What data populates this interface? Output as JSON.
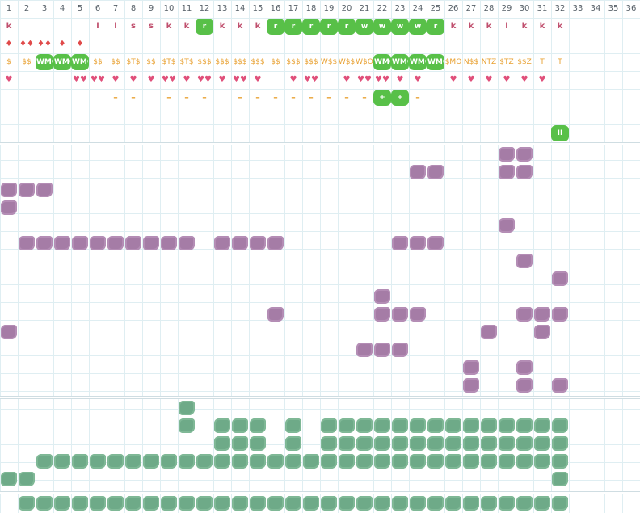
{
  "columns": [
    "1",
    "2",
    "3",
    "4",
    "5",
    "6",
    "7",
    "8",
    "9",
    "10",
    "11",
    "12",
    "13",
    "14",
    "15",
    "16",
    "17",
    "18",
    "19",
    "20",
    "21",
    "22",
    "23",
    "24",
    "25",
    "26",
    "27",
    "28",
    "29",
    "30",
    "31",
    "32",
    "33",
    "34",
    "35",
    "36"
  ],
  "top_rows": [
    {
      "row": 1,
      "cells": [
        {
          "c": 1,
          "t": "text",
          "v": "k"
        },
        {
          "c": 6,
          "t": "text",
          "v": "l"
        },
        {
          "c": 7,
          "t": "text",
          "v": "l"
        },
        {
          "c": 8,
          "t": "text",
          "v": "s"
        },
        {
          "c": 9,
          "t": "text",
          "v": "s"
        },
        {
          "c": 10,
          "t": "text",
          "v": "k"
        },
        {
          "c": 11,
          "t": "text",
          "v": "k"
        },
        {
          "c": 12,
          "t": "green",
          "v": "r"
        },
        {
          "c": 13,
          "t": "text",
          "v": "k"
        },
        {
          "c": 14,
          "t": "text",
          "v": "k"
        },
        {
          "c": 15,
          "t": "text",
          "v": "k"
        },
        {
          "c": 16,
          "t": "green",
          "v": "r"
        },
        {
          "c": 17,
          "t": "green",
          "v": "r"
        },
        {
          "c": 18,
          "t": "green",
          "v": "r"
        },
        {
          "c": 19,
          "t": "green",
          "v": "r"
        },
        {
          "c": 20,
          "t": "green",
          "v": "r"
        },
        {
          "c": 21,
          "t": "green",
          "v": "w"
        },
        {
          "c": 22,
          "t": "green",
          "v": "w"
        },
        {
          "c": 23,
          "t": "green",
          "v": "w"
        },
        {
          "c": 24,
          "t": "green",
          "v": "w"
        },
        {
          "c": 25,
          "t": "green",
          "v": "r"
        },
        {
          "c": 26,
          "t": "text",
          "v": "k"
        },
        {
          "c": 27,
          "t": "text",
          "v": "k"
        },
        {
          "c": 28,
          "t": "text",
          "v": "k"
        },
        {
          "c": 29,
          "t": "text",
          "v": "l"
        },
        {
          "c": 30,
          "t": "text",
          "v": "k"
        },
        {
          "c": 31,
          "t": "text",
          "v": "k"
        },
        {
          "c": 32,
          "t": "text",
          "v": "k"
        }
      ]
    },
    {
      "row": 2,
      "cells": [
        {
          "c": 1,
          "t": "drop",
          "v": "♦"
        },
        {
          "c": 2,
          "t": "drop",
          "v": "♦♦"
        },
        {
          "c": 3,
          "t": "drop",
          "v": "♦♦"
        },
        {
          "c": 4,
          "t": "drop",
          "v": "♦"
        },
        {
          "c": 5,
          "t": "drop",
          "v": "♦"
        }
      ]
    },
    {
      "row": 3,
      "cells": [
        {
          "c": 1,
          "t": "dollar",
          "v": "$"
        },
        {
          "c": 2,
          "t": "dollar",
          "v": "$$"
        },
        {
          "c": 3,
          "t": "green",
          "v": "WMO"
        },
        {
          "c": 4,
          "t": "green",
          "v": "WMO"
        },
        {
          "c": 5,
          "t": "green",
          "v": "WMO"
        },
        {
          "c": 6,
          "t": "dollar",
          "v": "$$"
        },
        {
          "c": 7,
          "t": "dollar",
          "v": "$$"
        },
        {
          "c": 8,
          "t": "dollar",
          "v": "$T$"
        },
        {
          "c": 9,
          "t": "dollar",
          "v": "$$"
        },
        {
          "c": 10,
          "t": "dollar",
          "v": "$T$"
        },
        {
          "c": 11,
          "t": "dollar",
          "v": "$T$"
        },
        {
          "c": 12,
          "t": "dollar",
          "v": "$$$"
        },
        {
          "c": 13,
          "t": "dollar",
          "v": "$$$"
        },
        {
          "c": 14,
          "t": "dollar",
          "v": "$$$"
        },
        {
          "c": 15,
          "t": "dollar",
          "v": "$$$"
        },
        {
          "c": 16,
          "t": "dollar",
          "v": "$$"
        },
        {
          "c": 17,
          "t": "dollar",
          "v": "$$$"
        },
        {
          "c": 18,
          "t": "dollar",
          "v": "$$$"
        },
        {
          "c": 19,
          "t": "dollar",
          "v": "W$$"
        },
        {
          "c": 20,
          "t": "dollar",
          "v": "W$$"
        },
        {
          "c": 21,
          "t": "dollar",
          "v": "W$O"
        },
        {
          "c": 22,
          "t": "green",
          "v": "WMO"
        },
        {
          "c": 23,
          "t": "green",
          "v": "WMO"
        },
        {
          "c": 24,
          "t": "green",
          "v": "WMO"
        },
        {
          "c": 25,
          "t": "green",
          "v": "WMO"
        },
        {
          "c": 26,
          "t": "dollar",
          "v": "$MO"
        },
        {
          "c": 27,
          "t": "dollar",
          "v": "N$$"
        },
        {
          "c": 28,
          "t": "dollar",
          "v": "NTZ"
        },
        {
          "c": 29,
          "t": "dollar",
          "v": "$TZ"
        },
        {
          "c": 30,
          "t": "dollar",
          "v": "$$Z"
        },
        {
          "c": 31,
          "t": "dollar",
          "v": "T"
        },
        {
          "c": 32,
          "t": "dollar",
          "v": "T"
        }
      ]
    },
    {
      "row": 4,
      "cells": [
        {
          "c": 1,
          "t": "heart",
          "v": "♥"
        },
        {
          "c": 5,
          "t": "heart",
          "v": "♥♥"
        },
        {
          "c": 6,
          "t": "heart",
          "v": "♥♥"
        },
        {
          "c": 7,
          "t": "heart",
          "v": "♥"
        },
        {
          "c": 8,
          "t": "heart",
          "v": "♥"
        },
        {
          "c": 9,
          "t": "heart",
          "v": "♥"
        },
        {
          "c": 10,
          "t": "heart",
          "v": "♥♥"
        },
        {
          "c": 11,
          "t": "heart",
          "v": "♥"
        },
        {
          "c": 12,
          "t": "heart",
          "v": "♥♥"
        },
        {
          "c": 13,
          "t": "heart",
          "v": "♥"
        },
        {
          "c": 14,
          "t": "heart",
          "v": "♥♥"
        },
        {
          "c": 15,
          "t": "heart",
          "v": "♥"
        },
        {
          "c": 17,
          "t": "heart",
          "v": "♥"
        },
        {
          "c": 18,
          "t": "heart",
          "v": "♥♥"
        },
        {
          "c": 20,
          "t": "heart",
          "v": "♥"
        },
        {
          "c": 21,
          "t": "heart",
          "v": "♥♥"
        },
        {
          "c": 22,
          "t": "heart",
          "v": "♥♥"
        },
        {
          "c": 23,
          "t": "heart",
          "v": "♥"
        },
        {
          "c": 24,
          "t": "heart",
          "v": "♥"
        },
        {
          "c": 26,
          "t": "heart",
          "v": "♥"
        },
        {
          "c": 27,
          "t": "heart",
          "v": "♥"
        },
        {
          "c": 28,
          "t": "heart",
          "v": "♥"
        },
        {
          "c": 29,
          "t": "heart",
          "v": "♥"
        },
        {
          "c": 30,
          "t": "heart",
          "v": "♥"
        },
        {
          "c": 31,
          "t": "heart",
          "v": "♥"
        }
      ]
    },
    {
      "row": 5,
      "cells": [
        {
          "c": 7,
          "t": "dash",
          "v": "–"
        },
        {
          "c": 8,
          "t": "dash",
          "v": "–"
        },
        {
          "c": 10,
          "t": "dash",
          "v": "–"
        },
        {
          "c": 11,
          "t": "dash",
          "v": "–"
        },
        {
          "c": 12,
          "t": "dash",
          "v": "–"
        },
        {
          "c": 14,
          "t": "dash",
          "v": "–"
        },
        {
          "c": 15,
          "t": "dash",
          "v": "–"
        },
        {
          "c": 16,
          "t": "dash",
          "v": "–"
        },
        {
          "c": 17,
          "t": "dash",
          "v": "–"
        },
        {
          "c": 18,
          "t": "dash",
          "v": "–"
        },
        {
          "c": 19,
          "t": "dash",
          "v": "–"
        },
        {
          "c": 20,
          "t": "dash",
          "v": "–"
        },
        {
          "c": 21,
          "t": "dash",
          "v": "–"
        },
        {
          "c": 22,
          "t": "green",
          "v": "+"
        },
        {
          "c": 23,
          "t": "green",
          "v": "+"
        },
        {
          "c": 24,
          "t": "dash",
          "v": "–"
        }
      ]
    },
    {
      "row": 7,
      "cells": [
        {
          "c": 32,
          "t": "green",
          "v": "II"
        }
      ]
    }
  ],
  "purple_rows": [
    {
      "row": 8,
      "cols": [
        29,
        30
      ]
    },
    {
      "row": 9,
      "cols": [
        24,
        25,
        29,
        30
      ]
    },
    {
      "row": 10,
      "cols": [
        1,
        2,
        3
      ]
    },
    {
      "row": 11,
      "cols": [
        1
      ]
    },
    {
      "row": 12,
      "cols": [
        29
      ]
    },
    {
      "row": 13,
      "cols": [
        2,
        3,
        4,
        5,
        6,
        7,
        8,
        9,
        10,
        11,
        13,
        14,
        15,
        16,
        23,
        24,
        25
      ]
    },
    {
      "row": 14,
      "cols": [
        30
      ]
    },
    {
      "row": 15,
      "cols": [
        32
      ]
    },
    {
      "row": 16,
      "cols": [
        22
      ]
    },
    {
      "row": 17,
      "cols": [
        16,
        22,
        23,
        24,
        30,
        31,
        32
      ]
    },
    {
      "row": 18,
      "cols": [
        1,
        28,
        31
      ]
    },
    {
      "row": 19,
      "cols": [
        21,
        22,
        23
      ]
    },
    {
      "row": 20,
      "cols": [
        27,
        30
      ]
    },
    {
      "row": 21,
      "cols": [
        27,
        30,
        32
      ]
    }
  ],
  "green_rows": [
    {
      "row": 22,
      "cols": [
        11
      ]
    },
    {
      "row": 23,
      "cols": [
        11,
        13,
        14,
        15,
        17,
        19,
        20,
        21,
        22,
        23,
        24,
        25,
        26,
        27,
        28,
        29,
        30,
        31,
        32
      ]
    },
    {
      "row": 24,
      "cols": [
        13,
        14,
        15,
        17,
        19,
        20,
        21,
        22,
        23,
        24,
        25,
        26,
        27,
        28,
        29,
        30,
        31,
        32
      ]
    },
    {
      "row": 25,
      "cols": [
        3,
        4,
        5,
        6,
        7,
        8,
        9,
        10,
        11,
        12,
        13,
        14,
        15,
        16,
        17,
        18,
        19,
        20,
        21,
        22,
        23,
        24,
        25,
        26,
        27,
        28,
        29,
        30,
        31,
        32
      ]
    },
    {
      "row": 26,
      "cols": [
        1,
        2,
        32
      ]
    },
    {
      "row": 27,
      "cols": [
        2,
        3,
        4,
        5,
        6,
        7,
        8,
        9,
        10,
        11,
        12,
        13,
        14,
        15,
        16,
        17,
        18,
        19,
        20,
        21,
        22,
        23,
        24,
        25,
        26,
        27,
        28,
        29,
        30,
        31,
        32
      ]
    }
  ],
  "colors": {
    "green_badge": "#58c048",
    "purple_blob": "#a57ca6",
    "green_blob": "#6eaa88",
    "letter": "#c0506e",
    "dollar": "#e8a030",
    "heart": "#e0507a"
  }
}
